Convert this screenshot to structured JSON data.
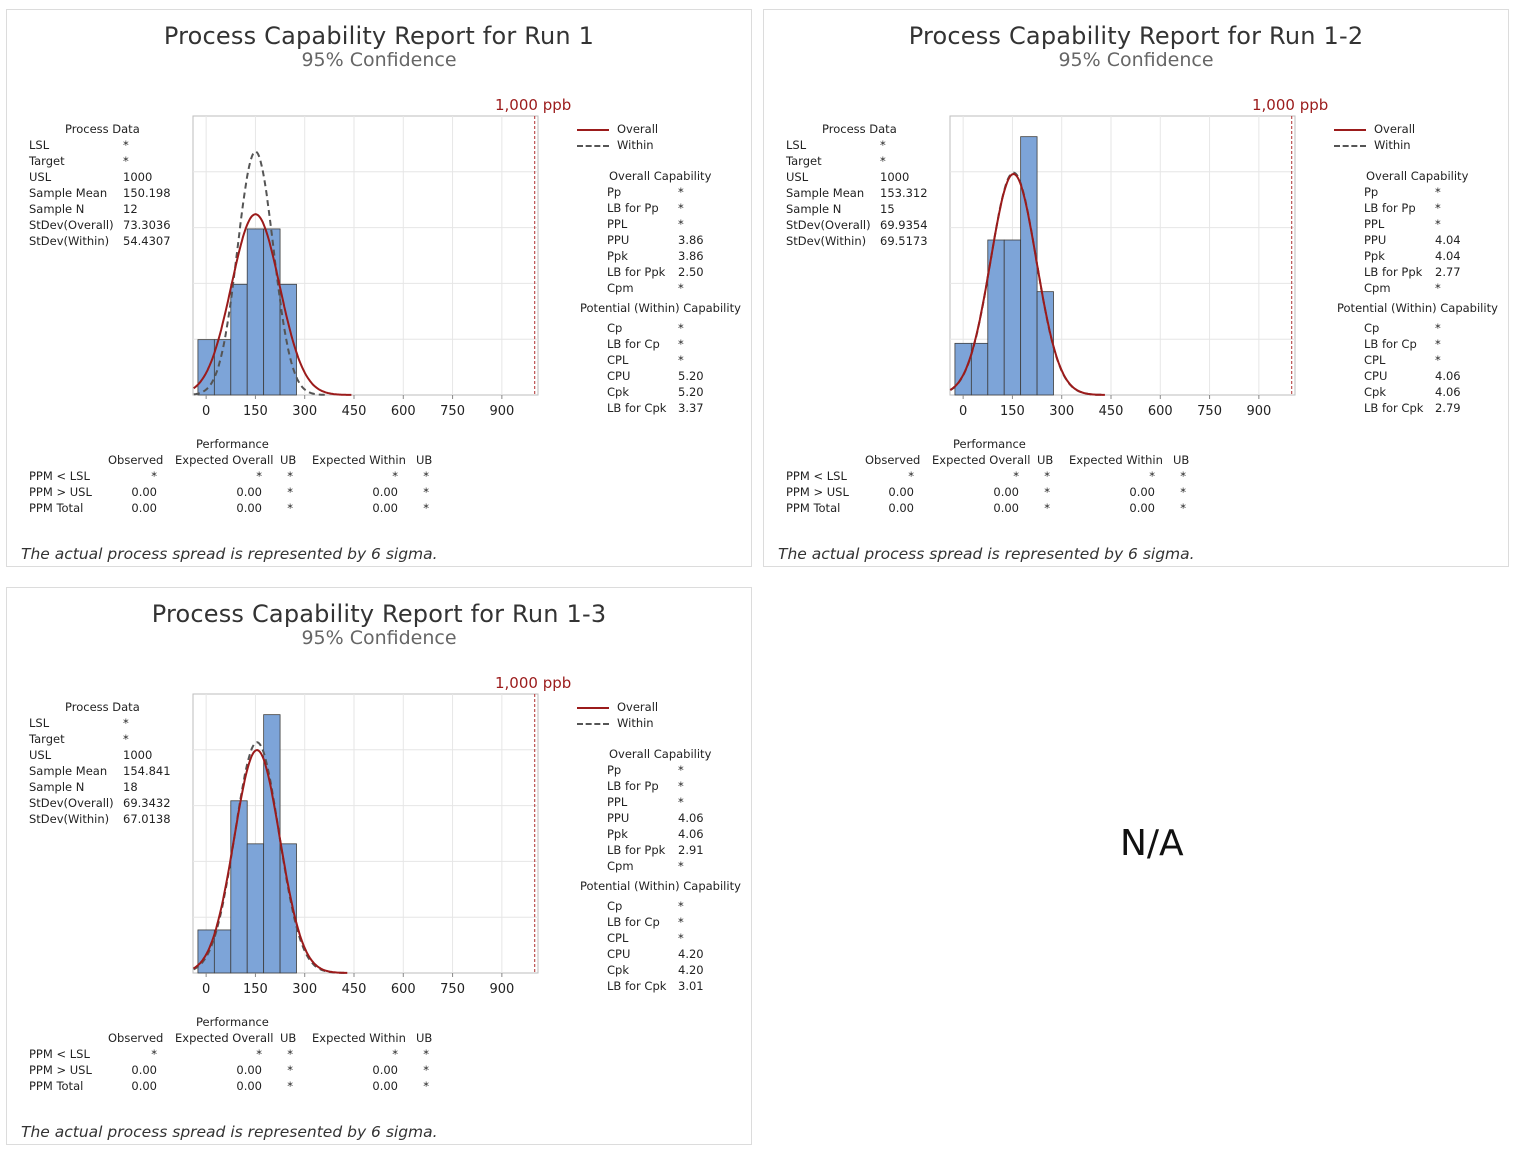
{
  "colors": {
    "bar": "#7da4d8",
    "bar_stroke": "#3d3d3d",
    "overall": "#9b1b1b",
    "within": "#555555",
    "usl": "#b03030",
    "grid": "#e6e6e6"
  },
  "common": {
    "subtitle": "95% Confidence",
    "usl_label": "1,000 ppb",
    "legend": {
      "overall": "Overall",
      "within": "Within"
    },
    "process_data_title": "Process Data",
    "pd_labels": [
      "LSL",
      "Target",
      "USL",
      "Sample Mean",
      "Sample N",
      "StDev(Overall)",
      "StDev(Within)"
    ],
    "overall_cap_title": "Overall Capability",
    "overall_cap_labels": [
      "Pp",
      "LB for Pp",
      "PPL",
      "PPU",
      "Ppk",
      "LB for Ppk",
      "Cpm"
    ],
    "within_cap_title": "Potential (Within) Capability",
    "within_cap_labels": [
      "Cp",
      "LB for Cp",
      "CPL",
      "CPU",
      "Cpk",
      "LB for Cpk"
    ],
    "performance_title": "Performance",
    "perf_headers": [
      "Observed",
      "Expected Overall",
      "UB",
      "Expected Within",
      "UB"
    ],
    "perf_rows": [
      "PPM < LSL",
      "PPM > USL",
      "PPM Total"
    ],
    "footnote": "The actual process spread is represented by 6 sigma.",
    "x_ticks": [
      "0",
      "150",
      "300",
      "450",
      "600",
      "750",
      "900"
    ]
  },
  "na_text": "N/A",
  "chart_data": [
    {
      "type": "bar",
      "title": "Process Capability Report for Run 1",
      "process_data": [
        "*",
        "*",
        "1000",
        "150.198",
        "12",
        "73.3036",
        "54.4307"
      ],
      "overall_cap": [
        "*",
        "*",
        "*",
        "3.86",
        "3.86",
        "2.50",
        "*"
      ],
      "within_cap": [
        "*",
        "*",
        "*",
        "5.20",
        "5.20",
        "3.37"
      ],
      "performance": [
        [
          "*",
          "*",
          "*",
          "*",
          "*"
        ],
        [
          "0.00",
          "0.00",
          "*",
          "0.00",
          "*"
        ],
        [
          "0.00",
          "0.00",
          "*",
          "0.00",
          "*"
        ]
      ],
      "bins": [
        -25,
        25,
        75,
        125,
        175,
        225,
        275
      ],
      "counts": [
        1,
        1,
        2,
        3,
        3,
        2
      ],
      "mean": 150.198,
      "sd_overall": 73.3036,
      "sd_within": 54.4307,
      "n": 12,
      "usl": 1000,
      "xlim": [
        -40,
        1010
      ],
      "ylim": [
        0,
        0.0084
      ]
    },
    {
      "type": "bar",
      "title": "Process Capability Report for Run 1-2",
      "process_data": [
        "*",
        "*",
        "1000",
        "153.312",
        "15",
        "69.9354",
        "69.5173"
      ],
      "overall_cap": [
        "*",
        "*",
        "*",
        "4.04",
        "4.04",
        "2.77",
        "*"
      ],
      "within_cap": [
        "*",
        "*",
        "*",
        "4.06",
        "4.06",
        "2.79"
      ],
      "performance": [
        [
          "*",
          "*",
          "*",
          "*",
          "*"
        ],
        [
          "0.00",
          "0.00",
          "*",
          "0.00",
          "*"
        ],
        [
          "0.00",
          "0.00",
          "*",
          "0.00",
          "*"
        ]
      ],
      "bins": [
        -25,
        25,
        75,
        125,
        175,
        225,
        275
      ],
      "counts": [
        1,
        1,
        3,
        3,
        5,
        2
      ],
      "mean": 153.312,
      "sd_overall": 69.9354,
      "sd_within": 69.5173,
      "n": 15,
      "usl": 1000,
      "xlim": [
        -40,
        1010
      ],
      "ylim": [
        0,
        0.0072
      ]
    },
    {
      "type": "bar",
      "title": "Process Capability Report for Run 1-3",
      "process_data": [
        "*",
        "*",
        "1000",
        "154.841",
        "18",
        "69.3432",
        "67.0138"
      ],
      "overall_cap": [
        "*",
        "*",
        "*",
        "4.06",
        "4.06",
        "2.91",
        "*"
      ],
      "within_cap": [
        "*",
        "*",
        "*",
        "4.20",
        "4.20",
        "3.01"
      ],
      "performance": [
        [
          "*",
          "*",
          "*",
          "*",
          "*"
        ],
        [
          "0.00",
          "0.00",
          "*",
          "0.00",
          "*"
        ],
        [
          "0.00",
          "0.00",
          "*",
          "0.00",
          "*"
        ]
      ],
      "bins": [
        -25,
        25,
        75,
        125,
        175,
        225,
        275
      ],
      "counts": [
        1,
        1,
        4,
        3,
        6,
        3
      ],
      "mean": 154.841,
      "sd_overall": 69.3432,
      "sd_within": 67.0138,
      "n": 18,
      "usl": 1000,
      "xlim": [
        -40,
        1010
      ],
      "ylim": [
        0,
        0.0072
      ]
    }
  ]
}
